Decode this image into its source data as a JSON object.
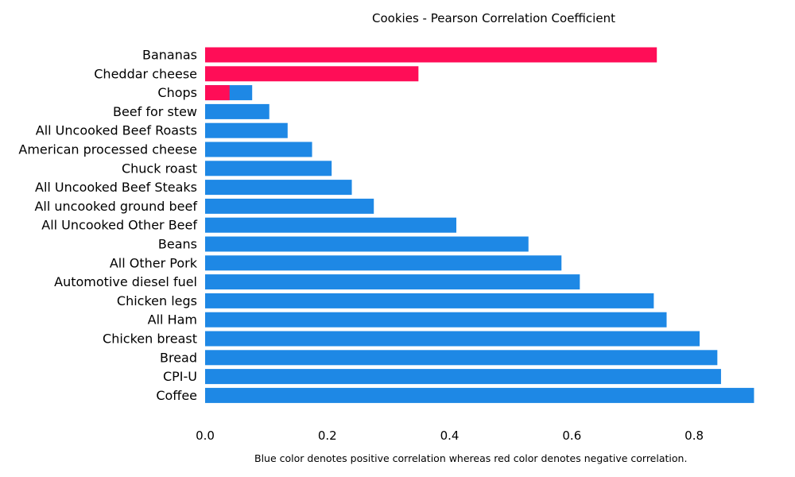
{
  "chart_data": {
    "type": "bar",
    "orientation": "horizontal",
    "title": "Cookies - Pearson Correlation Coefficient",
    "xlabel": "",
    "ylabel": "",
    "xlim": [
      0,
      0.9
    ],
    "x_ticks": [
      0.0,
      0.2,
      0.4,
      0.6,
      0.8
    ],
    "x_tick_labels": [
      "0.0",
      "0.2",
      "0.4",
      "0.6",
      "0.8"
    ],
    "grid": false,
    "categories": [
      "Bananas",
      "Cheddar cheese",
      "Chops",
      "Beef for stew",
      "All Uncooked Beef Roasts",
      "American processed cheese",
      "Chuck roast",
      "All Uncooked Beef Steaks",
      "All uncooked ground beef",
      "All Uncooked Other Beef",
      "Beans",
      "All Other Pork",
      "Automotive diesel fuel",
      "Chicken legs",
      "All Ham",
      "Chicken breast",
      "Bread",
      "CPI-U",
      "Coffee"
    ],
    "series": [
      {
        "name": "Positive correlation",
        "color": "#1e88e5",
        "values": [
          0,
          0,
          0.077,
          0.105,
          0.135,
          0.175,
          0.207,
          0.24,
          0.276,
          0.411,
          0.529,
          0.583,
          0.613,
          0.734,
          0.755,
          0.809,
          0.838,
          0.844,
          0.898
        ]
      },
      {
        "name": "Negative correlation",
        "color": "#ff0d57",
        "values": [
          0.739,
          0.349,
          0.04,
          0,
          0,
          0,
          0,
          0,
          0,
          0,
          0,
          0,
          0,
          0,
          0,
          0,
          0,
          0,
          0
        ]
      }
    ],
    "caption": "Blue color denotes positive correlation whereas red color denotes negative correlation."
  }
}
